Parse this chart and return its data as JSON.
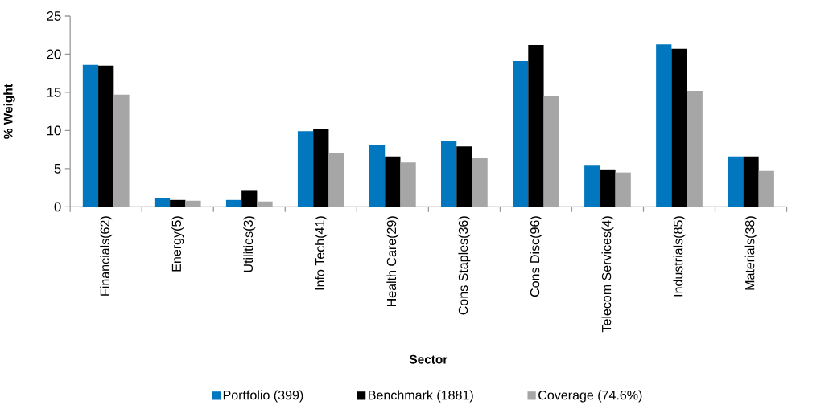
{
  "chart_data": {
    "type": "bar",
    "xlabel": "Sector",
    "ylabel": "% Weight",
    "categories": [
      "Financials(62)",
      "Energy(5)",
      "Utilities(3)",
      "Info Tech(41)",
      "Health Care(29)",
      "Cons Staples(36)",
      "Cons Disc(96)",
      "Telecom Services(4)",
      "Industrials(85)",
      "Materials(38)"
    ],
    "series": [
      {
        "name": "Portfolio (399)",
        "color": "#0077be",
        "values": [
          18.6,
          1.1,
          0.9,
          9.9,
          8.1,
          8.6,
          19.1,
          5.5,
          21.3,
          6.6
        ]
      },
      {
        "name": "Benchmark (1881)",
        "color": "#000000",
        "values": [
          18.5,
          0.9,
          2.1,
          10.2,
          6.6,
          7.9,
          21.2,
          4.9,
          20.7,
          6.6
        ]
      },
      {
        "name": "Coverage (74.6%)",
        "color": "#a6a6a6",
        "values": [
          14.7,
          0.8,
          0.7,
          7.1,
          5.8,
          6.4,
          14.5,
          4.5,
          15.2,
          4.7
        ]
      }
    ],
    "ylim": [
      0,
      25
    ],
    "yticks": [
      0,
      5,
      10,
      15,
      20,
      25
    ],
    "legend": "bottom"
  }
}
